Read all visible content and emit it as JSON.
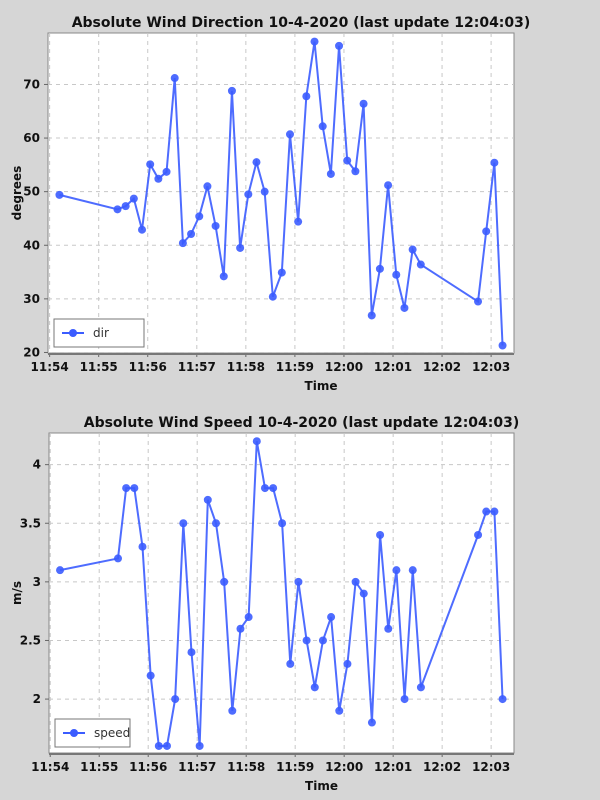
{
  "chart_data": [
    {
      "type": "line",
      "title": "Absolute Wind Direction 10-4-2020 (last update 12:04:03)",
      "xlabel": "Time",
      "ylabel": "degrees",
      "x_unit": "seconds after 11:54:00",
      "x": [
        12,
        83,
        93,
        103,
        113,
        123,
        133,
        143,
        153,
        163,
        173,
        183,
        193,
        203,
        213,
        223,
        233,
        243,
        253,
        263,
        273,
        284,
        294,
        304,
        314,
        324,
        334,
        344,
        354,
        364,
        374,
        384,
        394,
        404,
        414,
        424,
        434,
        444,
        454,
        524,
        534,
        544,
        554
      ],
      "series": [
        {
          "name": "dir",
          "values": [
            49.4,
            46.7,
            47.3,
            48.7,
            42.9,
            55.1,
            52.4,
            53.7,
            71.2,
            40.4,
            42.1,
            45.4,
            51.0,
            43.6,
            34.2,
            68.8,
            39.5,
            49.5,
            55.5,
            50.0,
            30.4,
            34.9,
            60.7,
            44.4,
            67.8,
            78.0,
            62.2,
            53.3,
            77.2,
            55.8,
            53.8,
            66.4,
            26.9,
            35.6,
            51.2,
            34.5,
            28.3,
            39.2,
            36.4,
            29.5,
            42.6,
            55.4,
            21.3
          ]
        }
      ],
      "xticks": [
        "11:54",
        "11:55",
        "11:56",
        "11:57",
        "11:58",
        "11:59",
        "12:00",
        "12:01",
        "12:02",
        "12:03"
      ],
      "yticks": [
        "20",
        "30",
        "40",
        "50",
        "60",
        "70"
      ],
      "ytick_values": [
        20,
        30,
        40,
        50,
        60,
        70
      ],
      "ylim": [
        19.9,
        79.6
      ],
      "xlim": [
        -2,
        568
      ],
      "grid": true,
      "legend": "bottom-left",
      "color": "#3b5cff"
    },
    {
      "type": "line",
      "title": "Absolute Wind Speed 10-4-2020 (last update 12:04:03)",
      "xlabel": "Time",
      "ylabel": "m/s",
      "x_unit": "seconds after 11:54:00",
      "x": [
        12,
        83,
        93,
        103,
        113,
        123,
        133,
        143,
        153,
        163,
        173,
        183,
        193,
        203,
        213,
        223,
        233,
        243,
        253,
        263,
        273,
        284,
        294,
        304,
        314,
        324,
        334,
        344,
        354,
        364,
        374,
        384,
        394,
        404,
        414,
        424,
        434,
        444,
        454,
        524,
        534,
        544,
        554
      ],
      "series": [
        {
          "name": "speed",
          "values": [
            3.1,
            3.2,
            3.8,
            3.8,
            3.3,
            2.2,
            1.6,
            1.6,
            2.0,
            3.5,
            2.4,
            1.6,
            3.7,
            3.5,
            3.0,
            1.9,
            2.6,
            2.7,
            4.2,
            3.8,
            3.8,
            3.5,
            2.3,
            3.0,
            2.5,
            2.1,
            2.5,
            2.7,
            1.9,
            2.3,
            3.0,
            2.9,
            1.8,
            3.4,
            2.6,
            3.1,
            2.0,
            3.1,
            2.1,
            3.4,
            3.6,
            3.6,
            2.0
          ]
        }
      ],
      "xticks": [
        "11:54",
        "11:55",
        "11:56",
        "11:57",
        "11:58",
        "11:59",
        "12:00",
        "12:01",
        "12:02",
        "12:03"
      ],
      "yticks": [
        "2",
        "2.5",
        "3",
        "3.5",
        "4"
      ],
      "ytick_values": [
        2,
        2.5,
        3,
        3.5,
        4
      ],
      "ylim": [
        1.54,
        4.27
      ],
      "xlim": [
        -1.5,
        568
      ],
      "grid": true,
      "legend": "bottom-left",
      "color": "#3b5cff"
    }
  ]
}
